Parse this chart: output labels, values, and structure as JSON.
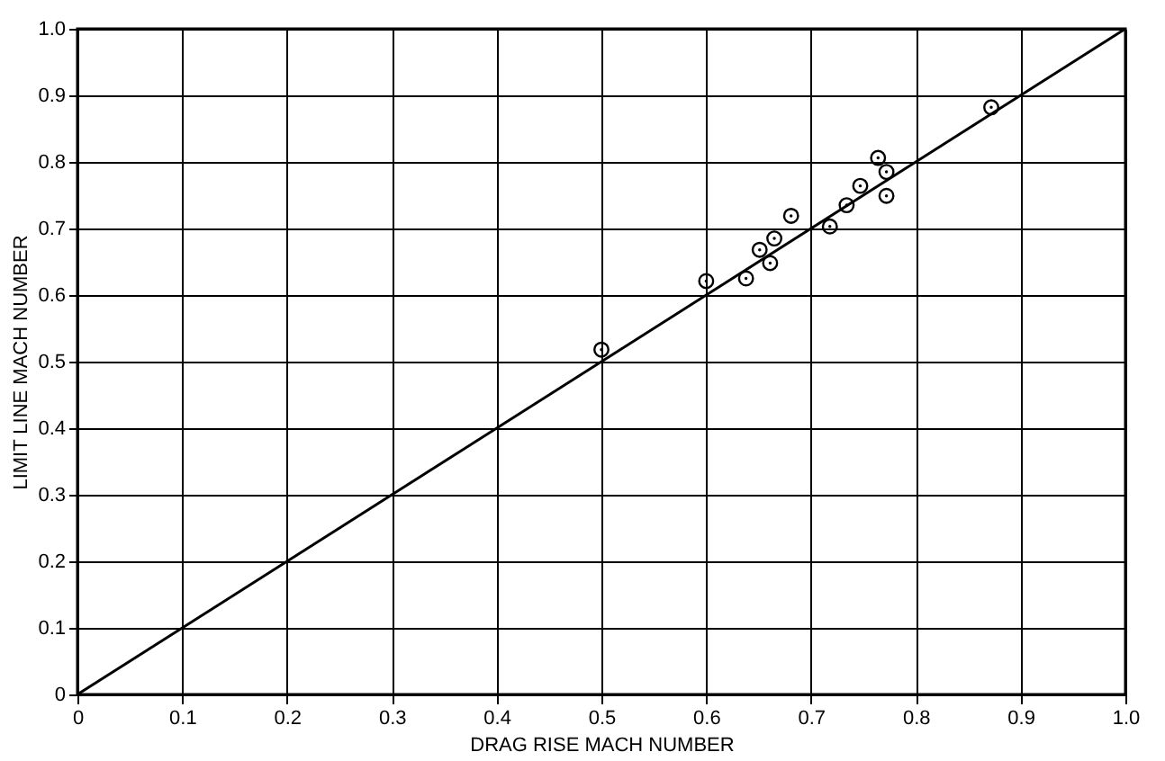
{
  "chart_data": {
    "type": "scatter",
    "xlabel": "DRAG RISE MACH NUMBER",
    "ylabel": "LIMIT LINE MACH NUMBER",
    "xlim": [
      0,
      1
    ],
    "ylim": [
      0,
      1
    ],
    "xticks": [
      0,
      0.1,
      0.2,
      0.3,
      0.4,
      0.5,
      0.6,
      0.7,
      0.8,
      0.9,
      {
        "value": 1,
        "label": "1.0"
      }
    ],
    "yticks": [
      0,
      0.1,
      0.2,
      0.3,
      0.4,
      0.5,
      0.6,
      0.7,
      0.8,
      0.9,
      {
        "value": 1,
        "label": "1.0"
      }
    ],
    "grid": true,
    "marker": "circle",
    "series": [
      {
        "type": "scatter",
        "color": "#000000",
        "x": [
          0.5,
          0.6,
          0.638,
          0.651,
          0.665,
          0.661,
          0.681,
          0.718,
          0.734,
          0.747,
          0.764,
          0.772,
          0.772,
          0.872
        ],
        "values": [
          0.518,
          0.621,
          0.625,
          0.668,
          0.685,
          0.648,
          0.719,
          0.703,
          0.735,
          0.764,
          0.806,
          0.785,
          0.749,
          0.882
        ]
      },
      {
        "type": "line",
        "color": "#000000",
        "marker": "none",
        "x": [
          0,
          1
        ],
        "values": [
          0,
          1
        ]
      }
    ]
  }
}
